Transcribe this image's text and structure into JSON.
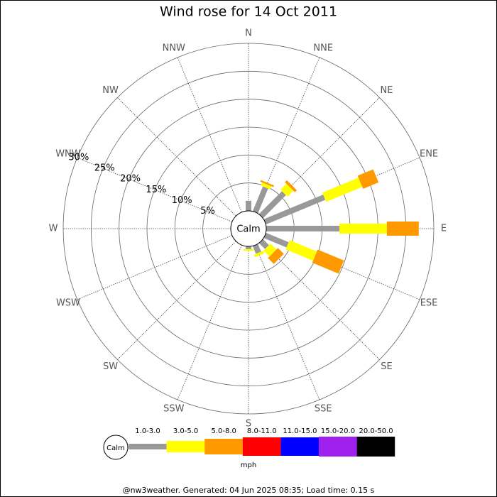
{
  "chart_data": {
    "type": "windrose",
    "title": "Wind rose for 14 Oct 2011",
    "categories": [
      "N",
      "NNE",
      "NE",
      "ENE",
      "E",
      "ESE",
      "SE",
      "SSE",
      "S",
      "SSW",
      "SW",
      "WSW",
      "W",
      "WNW",
      "NW",
      "NNW"
    ],
    "center_label": "Calm",
    "legend_unit": "mph",
    "footer": "@nw3weather. Generated: 04 Jun 2025 08:35; Load time: 0.15 s",
    "rlim": [
      0,
      30
    ],
    "rticks": [
      {
        "value": 5,
        "label": "5%"
      },
      {
        "value": 10,
        "label": "10%"
      },
      {
        "value": 15,
        "label": "15%"
      },
      {
        "value": 20,
        "label": "20%"
      },
      {
        "value": 25,
        "label": "25%"
      },
      {
        "value": 30,
        "label": "30%"
      }
    ],
    "series": [
      {
        "name": "1.0-3.0",
        "color": "#999999",
        "values": [
          1.8,
          4.8,
          5.8,
          11.5,
          13.1,
          4.4,
          1.5,
          1.5,
          0.5,
          0,
          0,
          0,
          0,
          0,
          0,
          0
        ]
      },
      {
        "name": "3.0-5.0",
        "color": "#ffff00",
        "values": [
          0,
          0.6,
          1.5,
          7,
          8.5,
          5.3,
          1.5,
          0.5,
          0.3,
          0,
          0,
          0,
          0,
          0,
          0,
          0
        ]
      },
      {
        "name": "5.0-8.0",
        "color": "#ff9900",
        "values": [
          0,
          0.3,
          0.5,
          3,
          5.7,
          5.1,
          1.5,
          0,
          0,
          0,
          0,
          0,
          0,
          0,
          0,
          0
        ]
      },
      {
        "name": "8.0-11.0",
        "color": "#ff0000",
        "values": [
          0,
          0,
          0,
          0,
          0,
          0,
          0,
          0,
          0,
          0,
          0,
          0,
          0,
          0,
          0,
          0
        ]
      },
      {
        "name": "11.0-15.0",
        "color": "#0000ff",
        "values": [
          0,
          0,
          0,
          0,
          0,
          0,
          0,
          0,
          0,
          0,
          0,
          0,
          0,
          0,
          0,
          0
        ]
      },
      {
        "name": "15.0-20.0",
        "color": "#a020f0",
        "values": [
          0,
          0,
          0,
          0,
          0,
          0,
          0,
          0,
          0,
          0,
          0,
          0,
          0,
          0,
          0,
          0
        ]
      },
      {
        "name": "20.0-50.0",
        "color": "#000000",
        "values": [
          0,
          0,
          0,
          0,
          0,
          0,
          0,
          0,
          0,
          0,
          0,
          0,
          0,
          0,
          0,
          0
        ]
      }
    ]
  }
}
